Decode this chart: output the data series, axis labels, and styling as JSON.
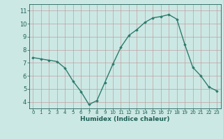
{
  "x": [
    0,
    1,
    2,
    3,
    4,
    5,
    6,
    7,
    8,
    9,
    10,
    11,
    12,
    13,
    14,
    15,
    16,
    17,
    18,
    19,
    20,
    21,
    22,
    23
  ],
  "y": [
    7.4,
    7.3,
    7.2,
    7.1,
    6.6,
    5.6,
    4.8,
    3.8,
    4.1,
    5.5,
    6.9,
    8.2,
    9.1,
    9.55,
    10.1,
    10.45,
    10.55,
    10.7,
    10.35,
    8.4,
    6.65,
    6.0,
    5.15,
    4.85
  ],
  "line_color": "#2d7b6e",
  "marker": "D",
  "marker_size": 1.8,
  "bg_color": "#cce8e4",
  "grid_color": "#c0a0a0",
  "xlabel": "Humidex (Indice chaleur)",
  "xlabel_color": "#1e5f55",
  "tick_color": "#1e5f55",
  "xlim": [
    -0.5,
    23.5
  ],
  "ylim": [
    3.5,
    11.5
  ],
  "yticks": [
    4,
    5,
    6,
    7,
    8,
    9,
    10,
    11
  ],
  "xticks": [
    0,
    1,
    2,
    3,
    4,
    5,
    6,
    7,
    8,
    9,
    10,
    11,
    12,
    13,
    14,
    15,
    16,
    17,
    18,
    19,
    20,
    21,
    22,
    23
  ],
  "line_width": 1.0,
  "tick_fontsize_x": 5.0,
  "tick_fontsize_y": 6.0,
  "xlabel_fontsize": 6.5
}
